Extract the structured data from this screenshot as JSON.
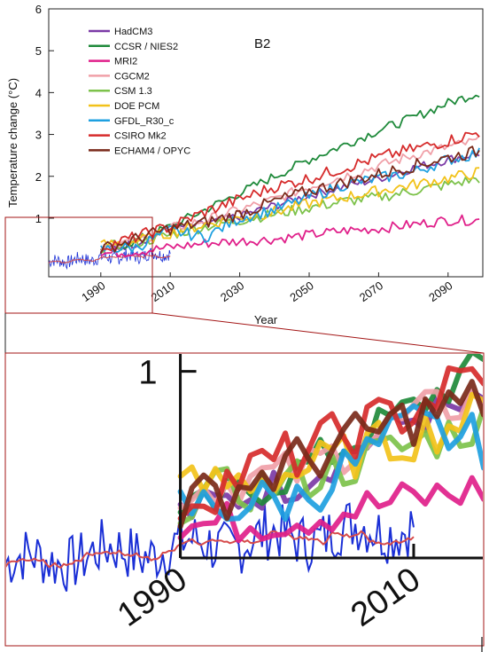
{
  "chart_data": [
    {
      "type": "line",
      "title": "",
      "annotation": "B2",
      "xlabel": "Year",
      "ylabel": "Temperature change (°C)",
      "xlim": [
        1975,
        2100
      ],
      "ylim": [
        -0.4,
        6
      ],
      "x_ticks": [
        1990,
        2010,
        2030,
        2050,
        2070,
        2090
      ],
      "y_ticks": [
        1,
        2,
        3,
        4,
        5,
        6
      ],
      "y_tick_labels": [
        "1",
        "2",
        "3",
        "4",
        "5",
        "6"
      ],
      "x_tick_labels": [
        "1990",
        "2010",
        "2030",
        "2050",
        "2070",
        "2090"
      ],
      "legend_position": "top-left",
      "grid": false,
      "observed": {
        "color": "#1a2fd6",
        "smooth_color": "#d64a4a",
        "x_start": 1975,
        "x_end": 2010
      },
      "series": [
        {
          "name": "HadCM3",
          "color": "#7b3aa6",
          "x": [
            1990,
            2000,
            2010,
            2020,
            2030,
            2040,
            2050,
            2060,
            2070,
            2080,
            2090,
            2099
          ],
          "values": [
            0.22,
            0.4,
            0.75,
            0.85,
            1.05,
            1.3,
            1.55,
            1.75,
            1.95,
            2.2,
            2.4,
            2.55
          ]
        },
        {
          "name": "CCSR / NIES2",
          "color": "#1f8a3b",
          "x": [
            1990,
            2000,
            2010,
            2020,
            2030,
            2040,
            2050,
            2060,
            2070,
            2080,
            2090,
            2099
          ],
          "values": [
            0.2,
            0.45,
            0.8,
            1.2,
            1.6,
            2.0,
            2.4,
            2.75,
            3.1,
            3.4,
            3.75,
            4.0
          ]
        },
        {
          "name": "MRI2",
          "color": "#e0208a",
          "x": [
            1990,
            2000,
            2010,
            2020,
            2030,
            2040,
            2050,
            2060,
            2070,
            2080,
            2090,
            2099
          ],
          "values": [
            0.15,
            0.2,
            0.3,
            0.4,
            0.45,
            0.5,
            0.6,
            0.7,
            0.75,
            0.85,
            0.95,
            0.95
          ]
        },
        {
          "name": "CGCM2",
          "color": "#f0a0a8",
          "x": [
            1990,
            2000,
            2010,
            2020,
            2030,
            2040,
            2050,
            2060,
            2070,
            2080,
            2090,
            2099
          ],
          "values": [
            0.35,
            0.45,
            0.75,
            0.95,
            1.2,
            1.45,
            1.75,
            2.0,
            2.25,
            2.5,
            2.7,
            2.85
          ]
        },
        {
          "name": "CSM 1.3",
          "color": "#7dc24b",
          "x": [
            1990,
            2000,
            2010,
            2020,
            2030,
            2040,
            2050,
            2060,
            2070,
            2080,
            2090,
            2099
          ],
          "values": [
            0.3,
            0.4,
            0.6,
            0.8,
            0.95,
            1.1,
            1.25,
            1.4,
            1.5,
            1.65,
            1.8,
            1.95
          ]
        },
        {
          "name": "DOE PCM",
          "color": "#f2c21a",
          "x": [
            1990,
            2000,
            2010,
            2020,
            2030,
            2040,
            2050,
            2060,
            2070,
            2080,
            2090,
            2099
          ],
          "values": [
            0.35,
            0.45,
            0.65,
            0.85,
            1.0,
            1.15,
            1.35,
            1.5,
            1.65,
            1.8,
            1.95,
            2.1
          ]
        },
        {
          "name": "GFDL_R30_c",
          "color": "#1ea0e0",
          "x": [
            1990,
            2000,
            2010,
            2020,
            2030,
            2040,
            2050,
            2060,
            2070,
            2080,
            2090,
            2099
          ],
          "values": [
            0.25,
            0.3,
            0.7,
            0.55,
            1.0,
            1.2,
            1.5,
            1.8,
            1.95,
            2.1,
            2.4,
            2.55
          ]
        },
        {
          "name": "CSIRO Mk2",
          "color": "#d62b2b",
          "x": [
            1990,
            2000,
            2010,
            2020,
            2030,
            2040,
            2050,
            2060,
            2070,
            2080,
            2090,
            2099
          ],
          "values": [
            0.3,
            0.55,
            0.8,
            1.15,
            1.45,
            1.75,
            1.95,
            2.2,
            2.45,
            2.65,
            2.85,
            3.05
          ]
        },
        {
          "name": "ECHAM4 / OPYC",
          "color": "#7a2a1a",
          "x": [
            1990,
            2000,
            2010,
            2020,
            2030,
            2040,
            2050,
            2060,
            2070,
            2080,
            2090,
            2099
          ],
          "values": [
            0.25,
            0.5,
            0.75,
            0.9,
            1.1,
            1.4,
            1.65,
            1.85,
            2.05,
            2.25,
            2.45,
            2.6
          ]
        }
      ]
    },
    {
      "type": "line",
      "title": "",
      "xlabel": "",
      "ylabel": "",
      "xlim": [
        1975,
        2016
      ],
      "ylim": [
        -0.5,
        1.1
      ],
      "x_ticks": [
        1990,
        2010
      ],
      "x_tick_labels": [
        "1990",
        "2010"
      ],
      "y_ticks": [
        1
      ],
      "y_tick_labels": [
        "1"
      ],
      "grid": false
    }
  ]
}
